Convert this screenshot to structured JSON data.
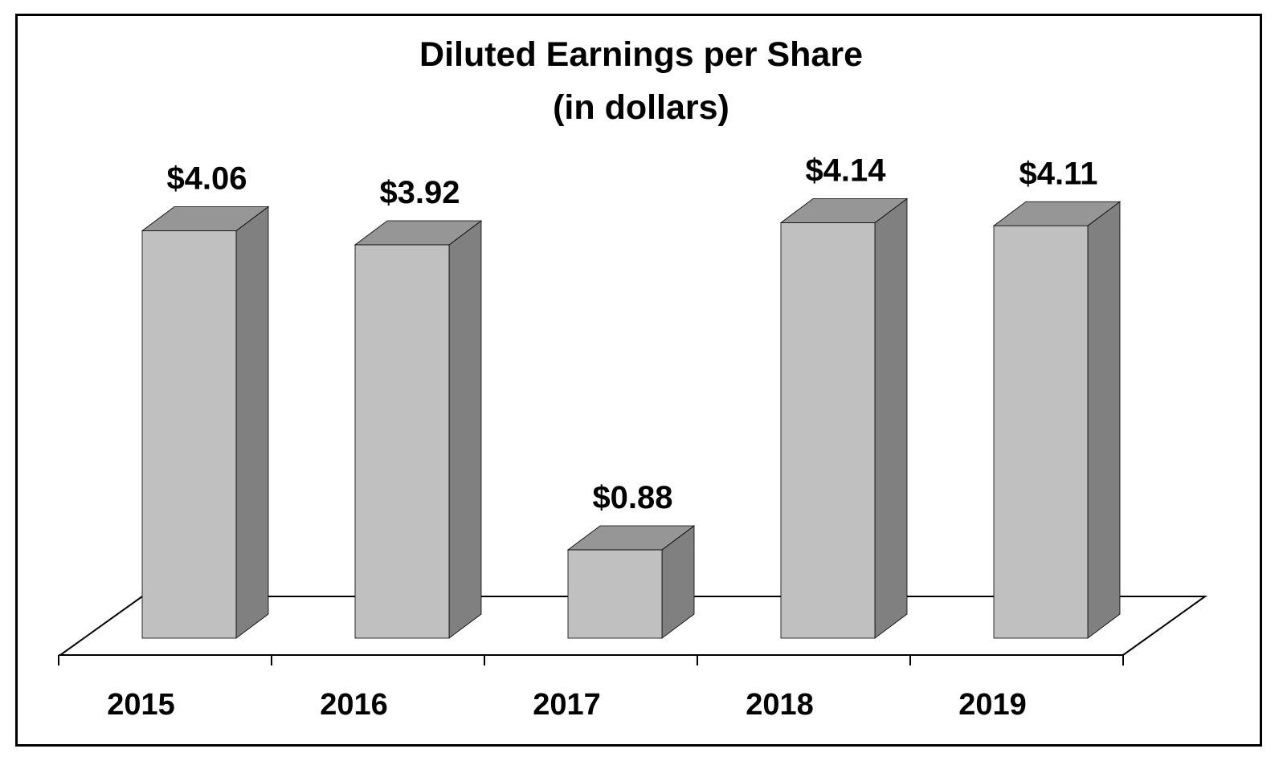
{
  "chart_data": {
    "type": "bar",
    "title": "Diluted Earnings per Share",
    "subtitle": "(in dollars)",
    "categories": [
      "2015",
      "2016",
      "2017",
      "2018",
      "2019"
    ],
    "values": [
      4.06,
      3.92,
      0.88,
      4.14,
      4.11
    ],
    "data_labels": [
      "$4.06",
      "$3.92",
      "$0.88",
      "$4.14",
      "$4.11"
    ],
    "xlabel": "",
    "ylabel": "",
    "ylim": [
      0,
      4.2
    ],
    "grid": false,
    "legend": "none",
    "style": "3d-column",
    "colors": {
      "bar_front": "#c0c0c0",
      "bar_top": "#969696",
      "bar_side": "#808080",
      "outline": "#000000",
      "background": "#ffffff"
    }
  }
}
